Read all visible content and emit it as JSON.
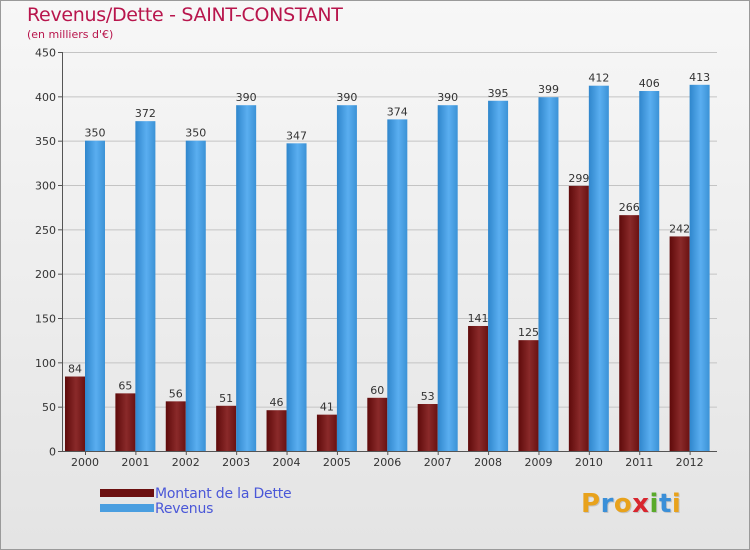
{
  "title": "Revenus/Dette - SAINT-CONSTANT",
  "subtitle": "(en milliers d'€)",
  "chart_data": {
    "type": "bar",
    "title": "Revenus/Dette - SAINT-CONSTANT",
    "subtitle": "(en milliers d'€)",
    "xlabel": "",
    "ylabel": "",
    "categories": [
      "2000",
      "2001",
      "2002",
      "2003",
      "2004",
      "2005",
      "2006",
      "2007",
      "2008",
      "2009",
      "2010",
      "2011",
      "2012"
    ],
    "series": [
      {
        "name": "Montant de la Dette",
        "color": "#7a1a1a",
        "values": [
          84,
          65,
          56,
          51,
          46,
          41,
          60,
          53,
          141,
          125,
          299,
          266,
          242
        ]
      },
      {
        "name": "Revenus",
        "color": "#4a9ee0",
        "values": [
          350,
          372,
          350,
          390,
          347,
          390,
          374,
          390,
          395,
          399,
          412,
          406,
          413
        ]
      }
    ],
    "ylim": [
      0,
      450
    ],
    "yticks": [
      0,
      50,
      100,
      150,
      200,
      250,
      300,
      350,
      400,
      450
    ],
    "grid": true,
    "legend_position": "bottom-left"
  },
  "legend": {
    "items": [
      {
        "label": "Montant de la Dette",
        "color": "#6b0f0f"
      },
      {
        "label": "Revenus",
        "color": "#4a9ee0"
      }
    ]
  },
  "logo": {
    "letters": [
      "P",
      "r",
      "o",
      "x",
      "i",
      "t",
      "i"
    ],
    "colors": [
      "#e8a21c",
      "#3a8fd8",
      "#e8a21c",
      "#d8262e",
      "#5aaa2a",
      "#3a8fd8",
      "#e8a21c"
    ]
  }
}
